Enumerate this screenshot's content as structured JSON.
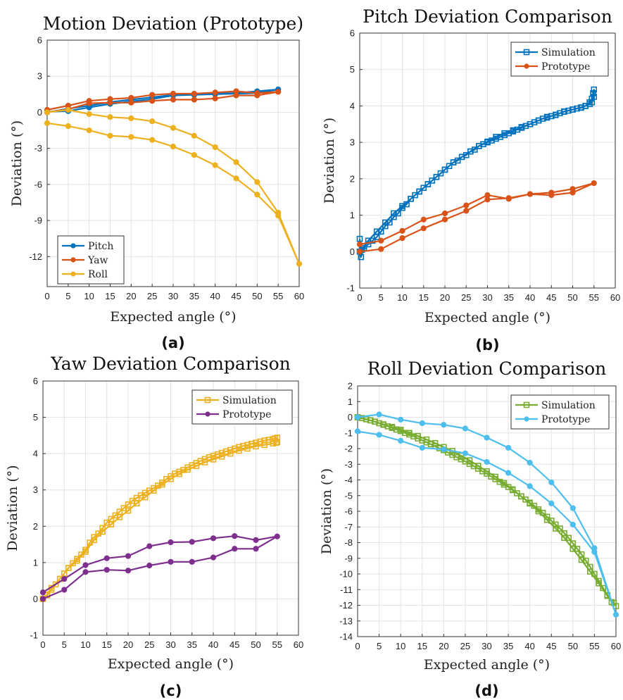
{
  "chart_data": [
    {
      "type": "line",
      "title": "Motion Deviation (Prototype)",
      "xlabel": "Expected angle (°)",
      "ylabel": "Deviation (°)",
      "caption": "(a)",
      "xlim": [
        0,
        60
      ],
      "ylim": [
        -14.5,
        6
      ],
      "xticks": [
        0,
        5,
        10,
        15,
        20,
        25,
        30,
        35,
        40,
        45,
        50,
        55,
        60
      ],
      "yticks": [
        -12,
        -9,
        -6,
        -3,
        0,
        3,
        6
      ],
      "grid": true,
      "legend_position": "bottom-left",
      "series": [
        {
          "name": "Pitch",
          "color": "#0072BD",
          "marker": "circle",
          "x": [
            0,
            5,
            10,
            15,
            20,
            25,
            30,
            35,
            40,
            45,
            50,
            55,
            50,
            45,
            40,
            35,
            30,
            25,
            20,
            15,
            10,
            5,
            0
          ],
          "y": [
            0.05,
            0.1,
            0.4,
            0.7,
            0.9,
            1.1,
            1.4,
            1.45,
            1.5,
            1.55,
            1.6,
            1.9,
            1.75,
            1.6,
            1.55,
            1.5,
            1.45,
            1.25,
            1.05,
            0.85,
            0.55,
            0.3,
            0.0
          ]
        },
        {
          "name": "Yaw",
          "color": "#D95319",
          "marker": "circle",
          "x": [
            0,
            5,
            10,
            15,
            20,
            25,
            30,
            35,
            40,
            45,
            50,
            55,
            50,
            45,
            40,
            35,
            30,
            25,
            20,
            15,
            10,
            5,
            0
          ],
          "y": [
            0.2,
            0.55,
            0.95,
            1.1,
            1.2,
            1.45,
            1.55,
            1.55,
            1.65,
            1.75,
            1.6,
            1.7,
            1.4,
            1.4,
            1.15,
            1.05,
            1.05,
            0.95,
            0.8,
            0.8,
            0.75,
            0.25,
            0.0
          ]
        },
        {
          "name": "Roll",
          "color": "#EDB120",
          "marker": "circle",
          "x": [
            0,
            5,
            10,
            15,
            20,
            25,
            30,
            35,
            40,
            45,
            50,
            55,
            60,
            55,
            50,
            45,
            40,
            35,
            30,
            25,
            20,
            15,
            10,
            5,
            0
          ],
          "y": [
            -0.9,
            -1.15,
            -1.5,
            -1.95,
            -2.05,
            -2.3,
            -2.85,
            -3.55,
            -4.4,
            -5.5,
            -6.85,
            -8.6,
            -12.6,
            -8.35,
            -5.8,
            -4.15,
            -2.9,
            -1.95,
            -1.3,
            -0.75,
            -0.5,
            -0.4,
            -0.15,
            0.2,
            0.0
          ]
        }
      ]
    },
    {
      "type": "line",
      "title": "Pitch Deviation Comparison",
      "xlabel": "Expected angle (°)",
      "ylabel": "Deviation (°)",
      "caption": "(b)",
      "xlim": [
        0,
        60
      ],
      "ylim": [
        -1,
        6
      ],
      "xticks": [
        0,
        5,
        10,
        15,
        20,
        25,
        30,
        35,
        40,
        45,
        50,
        55,
        60
      ],
      "yticks": [
        -1,
        0,
        1,
        2,
        3,
        4,
        5,
        6
      ],
      "grid": true,
      "legend_position": "top-right",
      "series": [
        {
          "name": "Simulation",
          "color": "#0072BD",
          "marker": "square",
          "x": [
            0,
            0.3,
            1,
            2,
            3,
            4,
            5,
            6,
            7,
            8,
            9,
            10,
            11,
            12,
            13,
            14,
            15,
            16,
            17,
            18,
            19,
            20,
            21,
            22,
            23,
            24,
            25,
            26,
            27,
            28,
            29,
            30,
            31,
            32,
            33,
            34,
            35,
            36,
            37,
            38,
            39,
            40,
            41,
            42,
            43,
            44,
            45,
            46,
            47,
            48,
            49,
            50,
            51,
            52,
            53,
            54,
            54.5,
            55,
            55,
            54.8,
            54.5,
            54,
            53,
            52,
            50,
            48,
            46,
            44,
            42,
            40,
            38,
            36,
            34,
            32,
            30,
            28,
            26,
            24,
            22,
            20,
            18,
            16,
            14,
            12,
            10,
            8,
            6,
            4,
            2,
            1,
            0.5,
            0
          ],
          "y": [
            0.35,
            -0.15,
            0.1,
            0.2,
            0.3,
            0.4,
            0.55,
            0.7,
            0.8,
            0.95,
            1.05,
            1.2,
            1.3,
            1.45,
            1.55,
            1.65,
            1.75,
            1.85,
            1.95,
            2.05,
            2.15,
            2.25,
            2.35,
            2.45,
            2.5,
            2.6,
            2.65,
            2.75,
            2.8,
            2.9,
            2.95,
            3.0,
            3.05,
            3.1,
            3.15,
            3.2,
            3.25,
            3.3,
            3.35,
            3.4,
            3.45,
            3.5,
            3.55,
            3.6,
            3.65,
            3.68,
            3.72,
            3.76,
            3.8,
            3.84,
            3.87,
            3.9,
            3.93,
            3.96,
            4.0,
            4.05,
            4.1,
            4.25,
            4.45,
            4.35,
            4.2,
            4.1,
            4.0,
            3.95,
            3.9,
            3.85,
            3.75,
            3.7,
            3.6,
            3.5,
            3.42,
            3.33,
            3.25,
            3.15,
            3.02,
            2.9,
            2.75,
            2.6,
            2.45,
            2.25,
            2.05,
            1.85,
            1.65,
            1.45,
            1.25,
            1.05,
            0.8,
            0.55,
            0.3,
            0.15,
            0.05,
            0.0
          ]
        },
        {
          "name": "Prototype",
          "color": "#D95319",
          "marker": "circle",
          "x": [
            0,
            5,
            10,
            15,
            20,
            25,
            30,
            35,
            40,
            45,
            50,
            55,
            50,
            45,
            40,
            35,
            30,
            25,
            20,
            15,
            10,
            5,
            0
          ],
          "y": [
            0.2,
            0.3,
            0.57,
            0.88,
            1.05,
            1.27,
            1.55,
            1.45,
            1.58,
            1.55,
            1.62,
            1.88,
            1.72,
            1.62,
            1.58,
            1.47,
            1.43,
            1.12,
            0.88,
            0.64,
            0.37,
            0.07,
            0.0
          ]
        }
      ]
    },
    {
      "type": "line",
      "title": "Yaw Deviation Comparison",
      "xlabel": "Expected angle (°)",
      "ylabel": "Deviation (°)",
      "caption": "(c)",
      "xlim": [
        0,
        60
      ],
      "ylim": [
        -1,
        6
      ],
      "xticks": [
        0,
        5,
        10,
        15,
        20,
        25,
        30,
        35,
        40,
        45,
        50,
        55,
        60
      ],
      "yticks": [
        -1,
        0,
        1,
        2,
        3,
        4,
        5,
        6
      ],
      "grid": true,
      "legend_position": "top-right",
      "series": [
        {
          "name": "Simulation",
          "color": "#EDB120",
          "marker": "square",
          "x": [
            0,
            1,
            2,
            3,
            4,
            5,
            6,
            7,
            8,
            9,
            10,
            11,
            12,
            13,
            14,
            15,
            16,
            17,
            18,
            19,
            20,
            21,
            22,
            23,
            24,
            25,
            26,
            27,
            28,
            29,
            30,
            31,
            32,
            33,
            34,
            35,
            36,
            37,
            38,
            39,
            40,
            41,
            42,
            43,
            44,
            45,
            46,
            47,
            48,
            49,
            50,
            51,
            52,
            53,
            54,
            54.5,
            55,
            55,
            54.8,
            54,
            52,
            50,
            48,
            46,
            44,
            42,
            40,
            38,
            36,
            34,
            32,
            30,
            28,
            26,
            24,
            22,
            20,
            18,
            16,
            14,
            12,
            10,
            8,
            6,
            4,
            2,
            1,
            0
          ],
          "y": [
            0.0,
            0.1,
            0.25,
            0.4,
            0.55,
            0.7,
            0.85,
            0.98,
            1.1,
            1.22,
            1.35,
            1.55,
            1.7,
            1.8,
            1.95,
            2.1,
            2.2,
            2.3,
            2.4,
            2.5,
            2.6,
            2.7,
            2.78,
            2.85,
            2.92,
            2.98,
            3.05,
            3.12,
            3.2,
            3.3,
            3.38,
            3.45,
            3.5,
            3.55,
            3.62,
            3.68,
            3.74,
            3.8,
            3.85,
            3.9,
            3.94,
            3.98,
            4.02,
            4.06,
            4.1,
            4.14,
            4.18,
            4.21,
            4.24,
            4.27,
            4.3,
            4.33,
            4.36,
            4.38,
            4.4,
            4.42,
            4.44,
            4.32,
            4.3,
            4.28,
            4.24,
            4.2,
            4.14,
            4.08,
            4.0,
            3.92,
            3.84,
            3.76,
            3.66,
            3.56,
            3.44,
            3.3,
            3.15,
            2.98,
            2.8,
            2.63,
            2.43,
            2.25,
            2.05,
            1.85,
            1.62,
            1.3,
            1.05,
            0.85,
            0.55,
            0.3,
            0.12,
            0.0
          ]
        },
        {
          "name": "Prototype",
          "color": "#7E2F8E",
          "marker": "circle",
          "x": [
            0,
            5,
            10,
            15,
            20,
            25,
            30,
            35,
            40,
            45,
            50,
            55,
            50,
            45,
            40,
            35,
            30,
            25,
            20,
            15,
            10,
            5,
            0
          ],
          "y": [
            0.18,
            0.55,
            0.93,
            1.12,
            1.18,
            1.45,
            1.56,
            1.57,
            1.67,
            1.73,
            1.62,
            1.72,
            1.38,
            1.38,
            1.14,
            1.02,
            1.02,
            0.92,
            0.78,
            0.8,
            0.74,
            0.25,
            0.0
          ]
        }
      ]
    },
    {
      "type": "line",
      "title": "Roll Deviation Comparison",
      "xlabel": "Expected angle (°)",
      "ylabel": "Deviation (°)",
      "caption": "(d)",
      "xlim": [
        0,
        60
      ],
      "ylim": [
        -14,
        2
      ],
      "xticks": [
        0,
        5,
        10,
        15,
        20,
        25,
        30,
        35,
        40,
        45,
        50,
        55,
        60
      ],
      "yticks": [
        -14,
        -13,
        -12,
        -11,
        -10,
        -9,
        -8,
        -7,
        -6,
        -5,
        -4,
        -3,
        -2,
        -1,
        0,
        1,
        2
      ],
      "grid": true,
      "legend_position": "top-right",
      "series": [
        {
          "name": "Simulation",
          "color": "#77AC30",
          "marker": "square",
          "x": [
            0,
            1,
            2,
            3,
            4,
            5,
            6,
            7,
            8,
            9,
            10,
            11,
            12,
            13,
            14,
            15,
            16,
            17,
            18,
            19,
            20,
            21,
            22,
            23,
            24,
            25,
            26,
            27,
            28,
            29,
            30,
            31,
            32,
            33,
            34,
            35,
            36,
            37,
            38,
            39,
            40,
            41,
            42,
            43,
            44,
            45,
            46,
            47,
            48,
            49,
            50,
            51,
            52,
            53,
            54,
            55,
            56,
            57,
            58,
            59,
            60,
            59.5,
            58,
            56,
            54,
            52,
            50,
            48,
            46,
            44,
            42,
            40,
            38,
            36,
            34,
            32,
            30,
            28,
            26,
            24,
            22,
            20,
            18,
            16,
            14,
            12,
            10,
            8,
            6,
            4,
            2,
            0
          ],
          "y": [
            0.0,
            -0.05,
            -0.12,
            -0.2,
            -0.28,
            -0.38,
            -0.48,
            -0.58,
            -0.68,
            -0.78,
            -0.88,
            -1.0,
            -1.1,
            -1.22,
            -1.35,
            -1.48,
            -1.6,
            -1.72,
            -1.85,
            -1.98,
            -2.1,
            -2.25,
            -2.4,
            -2.55,
            -2.68,
            -2.82,
            -2.98,
            -3.12,
            -3.28,
            -3.45,
            -3.6,
            -3.78,
            -3.95,
            -4.12,
            -4.3,
            -4.45,
            -4.65,
            -4.85,
            -5.05,
            -5.25,
            -5.45,
            -5.65,
            -5.88,
            -6.1,
            -6.35,
            -6.6,
            -6.85,
            -7.1,
            -7.4,
            -7.7,
            -8.05,
            -8.4,
            -8.75,
            -9.15,
            -9.55,
            -10.0,
            -10.45,
            -10.9,
            -11.35,
            -11.8,
            -12.05,
            -11.85,
            -11.4,
            -10.6,
            -9.85,
            -9.1,
            -8.4,
            -7.7,
            -7.1,
            -6.55,
            -6.0,
            -5.5,
            -5.05,
            -4.6,
            -4.2,
            -3.8,
            -3.45,
            -3.1,
            -2.75,
            -2.45,
            -2.15,
            -1.9,
            -1.65,
            -1.42,
            -1.2,
            -1.0,
            -0.8,
            -0.62,
            -0.45,
            -0.28,
            -0.13,
            0.0
          ]
        },
        {
          "name": "Prototype",
          "color": "#4DBEEE",
          "marker": "circle",
          "x": [
            0,
            5,
            10,
            15,
            20,
            25,
            30,
            35,
            40,
            45,
            50,
            55,
            60,
            55,
            50,
            45,
            40,
            35,
            30,
            25,
            20,
            15,
            10,
            5,
            0
          ],
          "y": [
            -0.9,
            -1.12,
            -1.5,
            -1.95,
            -2.05,
            -2.3,
            -2.85,
            -3.55,
            -4.4,
            -5.5,
            -6.85,
            -8.6,
            -12.6,
            -8.35,
            -5.8,
            -4.15,
            -2.9,
            -1.95,
            -1.3,
            -0.72,
            -0.48,
            -0.38,
            -0.15,
            0.18,
            0.0
          ]
        }
      ]
    }
  ]
}
